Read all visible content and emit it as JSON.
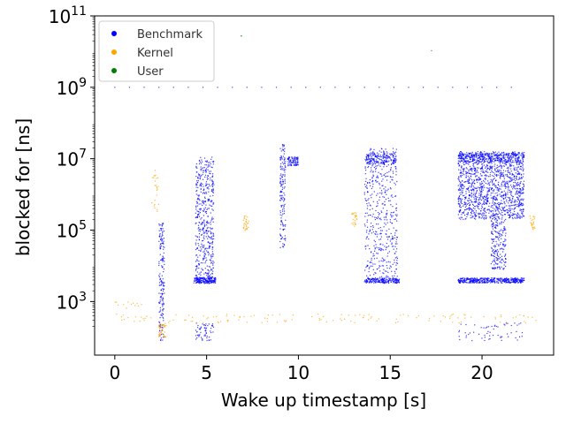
{
  "chart_data": {
    "type": "scatter",
    "xlabel": "Wake up timestamp [s]",
    "ylabel": "blocked for [ns]",
    "xlim": [
      -1.1,
      23.9
    ],
    "ylim_log10": [
      1.5,
      11.0
    ],
    "y_scale": "log",
    "x_ticks": [
      0,
      5,
      10,
      15,
      20
    ],
    "y_ticks": [
      {
        "exp": 3,
        "base": "10",
        "sup": "3"
      },
      {
        "exp": 5,
        "base": "10",
        "sup": "5"
      },
      {
        "exp": 7,
        "base": "10",
        "sup": "7"
      },
      {
        "exp": 9,
        "base": "10",
        "sup": "9"
      },
      {
        "exp": 11,
        "base": "10",
        "sup": "11"
      }
    ],
    "legend_position": "top-left",
    "grid": false,
    "series": [
      {
        "name": "Benchmark",
        "color": "#0000ff",
        "clusters": [
          {
            "x": [
              0,
              22.3
            ],
            "y_exp": 9.0,
            "step": 0.8,
            "kind": "row"
          },
          {
            "x": [
              2.4,
              2.7
            ],
            "y_exp": [
              1.9,
              5.2
            ],
            "kind": "band",
            "n": 180
          },
          {
            "x": [
              4.4,
              5.4
            ],
            "y_exp": [
              3.5,
              7.05
            ],
            "kind": "band",
            "n": 520
          },
          {
            "x": [
              4.3,
              5.5
            ],
            "y_exp": [
              3.52,
              3.68
            ],
            "kind": "band",
            "n": 160
          },
          {
            "x": [
              4.4,
              5.4
            ],
            "y_exp": [
              1.9,
              2.4
            ],
            "kind": "band",
            "n": 60
          },
          {
            "x": [
              9.0,
              9.3
            ],
            "y_exp": [
              4.5,
              7.4
            ],
            "kind": "band",
            "n": 160
          },
          {
            "x": [
              9.4,
              10.0
            ],
            "y_exp": [
              6.8,
              7.05
            ],
            "kind": "band",
            "n": 80
          },
          {
            "x": [
              13.6,
              15.4
            ],
            "y_exp": [
              3.5,
              7.3
            ],
            "kind": "band",
            "n": 520
          },
          {
            "x": [
              13.6,
              15.5
            ],
            "y_exp": [
              3.52,
              3.65
            ],
            "kind": "band",
            "n": 180
          },
          {
            "x": [
              13.7,
              15.3
            ],
            "y_exp": [
              6.85,
              7.15
            ],
            "kind": "band",
            "n": 150
          },
          {
            "x": [
              18.7,
              22.3
            ],
            "y_exp": [
              3.52,
              3.66
            ],
            "kind": "band",
            "n": 420
          },
          {
            "x": [
              18.7,
              22.3
            ],
            "y_exp": [
              5.3,
              7.2
            ],
            "kind": "band",
            "n": 1400
          },
          {
            "x": [
              18.7,
              22.3
            ],
            "y_exp": [
              6.9,
              7.15
            ],
            "kind": "band",
            "n": 300
          },
          {
            "x": [
              20.5,
              21.3
            ],
            "y_exp": [
              3.9,
              5.3
            ],
            "kind": "band",
            "n": 200
          },
          {
            "x": [
              18.7,
              22.3
            ],
            "y_exp": [
              1.9,
              2.4
            ],
            "kind": "band",
            "n": 60
          }
        ]
      },
      {
        "name": "Kernel",
        "color": "#ffa500",
        "clusters": [
          {
            "x": [
              0,
              23
            ],
            "y_exp": [
              2.4,
              2.65
            ],
            "kind": "band",
            "n": 130
          },
          {
            "x": [
              2.0,
              2.4
            ],
            "y_exp": [
              5.5,
              6.7
            ],
            "kind": "band",
            "n": 25
          },
          {
            "x": [
              2.4,
              2.8
            ],
            "y_exp": [
              2.0,
              2.4
            ],
            "kind": "band",
            "n": 40
          },
          {
            "x": [
              7.0,
              7.3
            ],
            "y_exp": [
              5.0,
              5.4
            ],
            "kind": "band",
            "n": 30
          },
          {
            "x": [
              12.9,
              13.2
            ],
            "y_exp": [
              5.1,
              5.5
            ],
            "kind": "band",
            "n": 25
          },
          {
            "x": [
              22.6,
              22.9
            ],
            "y_exp": [
              5.0,
              5.4
            ],
            "kind": "band",
            "n": 25
          },
          {
            "x": [
              0,
              1.5
            ],
            "y_exp": [
              2.8,
              3.0
            ],
            "kind": "band",
            "n": 12
          }
        ]
      },
      {
        "name": "User",
        "color": "#008000",
        "clusters": [
          {
            "x": [
              6.8,
              6.9
            ],
            "y_exp": [
              10.4,
              10.5
            ],
            "kind": "band",
            "n": 2
          },
          {
            "x": [
              17.2,
              17.3
            ],
            "y_exp": [
              9.95,
              10.05
            ],
            "kind": "band",
            "n": 1
          }
        ]
      }
    ]
  }
}
